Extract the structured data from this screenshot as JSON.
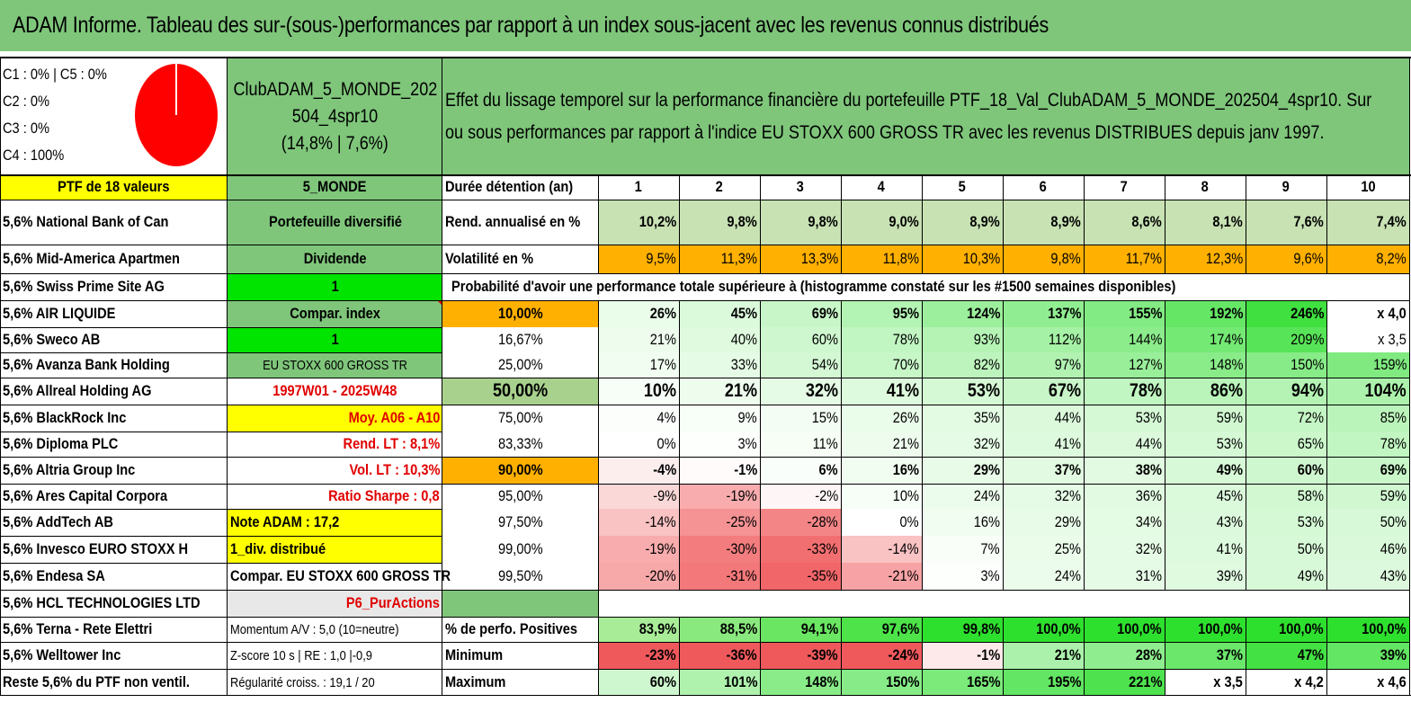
{
  "title": "ADAM Informe. Tableau des sur-(sous-)performances par rapport à un index sous-jacent avec les revenus connus distribués",
  "pie": {
    "labels": [
      "C1 : 0% | C5 : 0%",
      "C2 : 0%",
      "C3 : 0%",
      "C4 : 100%"
    ],
    "slices": [
      {
        "name": "C4",
        "value": 100,
        "color": "#ff0000"
      }
    ]
  },
  "portfolio": {
    "name_line1": "ClubADAM_5_MONDE_202",
    "name_line2": "504_4spr10",
    "perf": "(14,8% | 7,6%)",
    "description": "Effet du lissage temporel sur la performance financière du portefeuille PTF_18_Val_ClubADAM_5_MONDE_202504_4spr10. Sur ou sous performances par rapport à l'indice EU STOXX 600 GROSS TR avec les revenus DISTRIBUES depuis janv 1997.",
    "desc_line1": "Effet du lissage temporel sur la performance financière du portefeuille PTF_18_Val_ClubADAM_5_MONDE_202504_4spr10. Sur",
    "desc_line2": "ou sous performances par rapport à l'indice EU STOXX 600 GROSS TR avec les revenus DISTRIBUES depuis janv 1997."
  },
  "holdings_header": "PTF de 18 valeurs",
  "holdings": [
    "5,6% National Bank of Can",
    "5,6% Mid-America Apartmen",
    "5,6% Swiss Prime Site AG",
    "5,6% AIR LIQUIDE",
    "5,6% Sweco AB",
    "5,6% Avanza Bank Holding",
    "5,6% Allreal Holding AG",
    "5,6% BlackRock Inc",
    "5,6% Diploma PLC",
    "5,6% Altria Group Inc",
    "5,6% Ares Capital Corpora",
    "5,6% AddTech AB",
    "5,6% Invesco EURO STOXX H",
    "5,6% Endesa SA",
    "5,6% HCL TECHNOLOGIES LTD",
    "5,6% Terna - Rete Elettri",
    "5,6% Welltower Inc",
    "Reste 5,6% du PTF non ventil."
  ],
  "info": [
    "5_MONDE",
    "Portefeuille diversifié",
    "Dividende",
    "1",
    "Compar. index",
    "1",
    "EU STOXX 600 GROSS TR",
    "1997W01 - 2025W48",
    "Moy. A06 - A10",
    "Rend. LT : 8,1%",
    "Vol. LT : 10,3%",
    "Ratio Sharpe : 0,8",
    "Note ADAM : 17,2",
    "1_div. distribué",
    "Compar. EU STOXX 600 GROSS TR",
    "P6_PurActions",
    "Momentum A/V : 5,0 (10=neutre)",
    "Z-score 10 s | RE : 1,0 |-0,9",
    "Régularité croiss. : 19,1 / 20"
  ],
  "table": {
    "duration_label": "Durée détention (an)",
    "years": [
      "1",
      "2",
      "3",
      "4",
      "5",
      "6",
      "7",
      "8",
      "9",
      "10"
    ],
    "rend_label": "Rend. annualisé en %",
    "rend": [
      "10,2%",
      "9,8%",
      "9,8%",
      "9,0%",
      "8,9%",
      "8,9%",
      "8,6%",
      "8,1%",
      "7,6%",
      "7,4%"
    ],
    "vol_label": "Volatilité en %",
    "vol": [
      "9,5%",
      "11,3%",
      "13,3%",
      "11,8%",
      "10,3%",
      "9,8%",
      "11,7%",
      "12,3%",
      "9,6%",
      "8,2%"
    ],
    "prob_title": "Probabilité d'avoir une performance totale supérieure à (histogramme constaté sur les #1500 semaines disponibles)",
    "prob_rows": [
      {
        "p": "10,00%",
        "v": [
          "26%",
          "45%",
          "69%",
          "95%",
          "124%",
          "137%",
          "155%",
          "192%",
          "246%",
          "x 4,0"
        ]
      },
      {
        "p": "16,67%",
        "v": [
          "21%",
          "40%",
          "60%",
          "78%",
          "93%",
          "112%",
          "144%",
          "174%",
          "209%",
          "x 3,5"
        ]
      },
      {
        "p": "25,00%",
        "v": [
          "17%",
          "33%",
          "54%",
          "70%",
          "82%",
          "97%",
          "127%",
          "148%",
          "150%",
          "159%"
        ]
      },
      {
        "p": "50,00%",
        "v": [
          "10%",
          "21%",
          "32%",
          "41%",
          "53%",
          "67%",
          "78%",
          "86%",
          "94%",
          "104%"
        ]
      },
      {
        "p": "75,00%",
        "v": [
          "4%",
          "9%",
          "15%",
          "26%",
          "35%",
          "44%",
          "53%",
          "59%",
          "72%",
          "85%"
        ]
      },
      {
        "p": "83,33%",
        "v": [
          "0%",
          "3%",
          "11%",
          "21%",
          "32%",
          "41%",
          "44%",
          "53%",
          "65%",
          "78%"
        ]
      },
      {
        "p": "90,00%",
        "v": [
          "-4%",
          "-1%",
          "6%",
          "16%",
          "29%",
          "37%",
          "38%",
          "49%",
          "60%",
          "69%"
        ]
      },
      {
        "p": "95,00%",
        "v": [
          "-9%",
          "-19%",
          "-2%",
          "10%",
          "24%",
          "32%",
          "36%",
          "45%",
          "58%",
          "59%"
        ]
      },
      {
        "p": "97,50%",
        "v": [
          "-14%",
          "-25%",
          "-28%",
          "0%",
          "16%",
          "29%",
          "34%",
          "43%",
          "53%",
          "50%"
        ]
      },
      {
        "p": "99,00%",
        "v": [
          "-19%",
          "-30%",
          "-33%",
          "-14%",
          "7%",
          "25%",
          "32%",
          "41%",
          "50%",
          "46%"
        ]
      },
      {
        "p": "99,50%",
        "v": [
          "-20%",
          "-31%",
          "-35%",
          "-21%",
          "3%",
          "24%",
          "31%",
          "39%",
          "49%",
          "43%"
        ]
      }
    ],
    "pos_label": "% de perfo. Positives",
    "pos": [
      "83,9%",
      "88,5%",
      "94,1%",
      "97,6%",
      "99,8%",
      "100,0%",
      "100,0%",
      "100,0%",
      "100,0%",
      "100,0%"
    ],
    "min_label": "Minimum",
    "min": [
      "-23%",
      "-36%",
      "-39%",
      "-24%",
      "-1%",
      "21%",
      "28%",
      "37%",
      "47%",
      "39%"
    ],
    "max_label": "Maximum",
    "max": [
      "60%",
      "101%",
      "148%",
      "150%",
      "165%",
      "195%",
      "221%",
      "x 3,5",
      "x 4,2",
      "x 4,6"
    ]
  }
}
